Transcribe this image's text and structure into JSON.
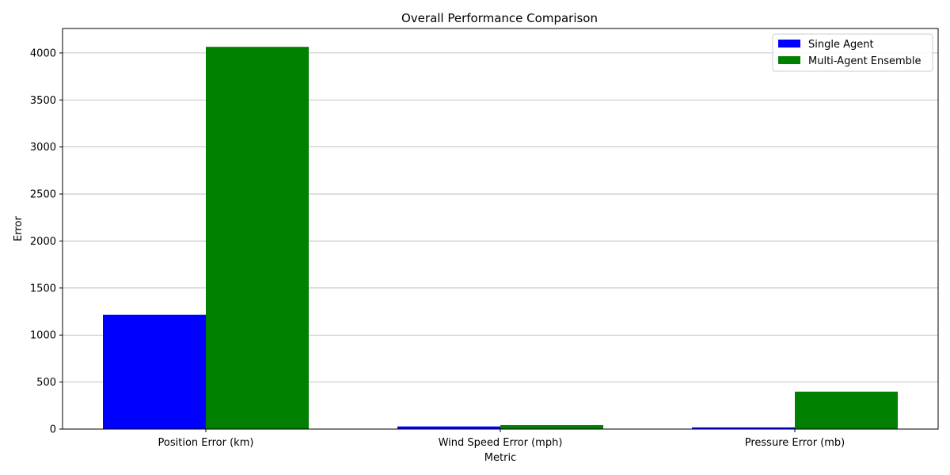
{
  "chart_data": {
    "type": "bar",
    "title": "Overall Performance Comparison",
    "xlabel": "Metric",
    "ylabel": "Error",
    "categories": [
      "Position Error (km)",
      "Wind Speed Error (mph)",
      "Pressure Error (mb)"
    ],
    "series": [
      {
        "name": "Single Agent",
        "color": "#0000ff",
        "values": [
          1215,
          28,
          18
        ]
      },
      {
        "name": "Multi-Agent Ensemble",
        "color": "#008000",
        "values": [
          4065,
          42,
          398
        ]
      }
    ],
    "ylim": [
      0,
      4260
    ],
    "yticks": [
      "0",
      "500",
      "1000",
      "1500",
      "2000",
      "2500",
      "3000",
      "3500",
      "4000"
    ],
    "grid": "y",
    "legend_position": "top-right"
  }
}
